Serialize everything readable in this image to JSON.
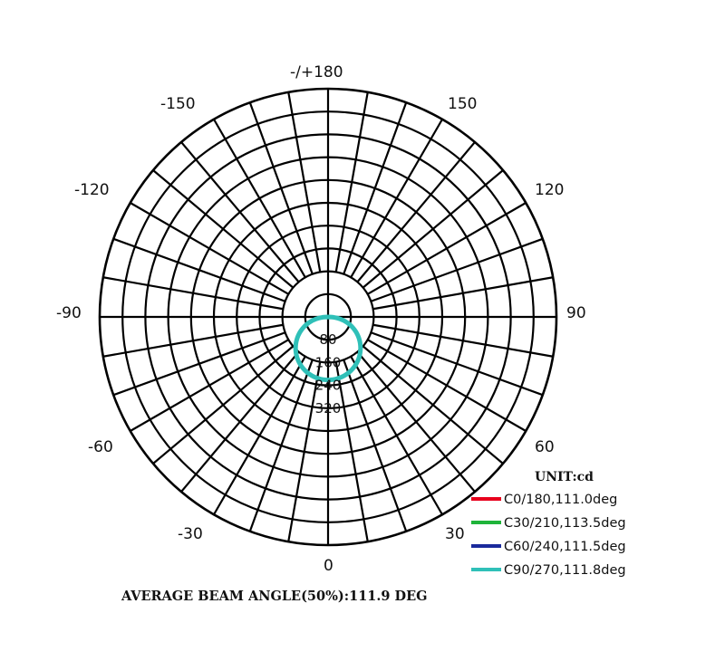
{
  "chart_data": {
    "type": "polar",
    "angle_labels": [
      {
        "angle": 180,
        "text": "-/+180"
      },
      {
        "angle": -150,
        "text": "-150"
      },
      {
        "angle": 150,
        "text": "150"
      },
      {
        "angle": -120,
        "text": "-120"
      },
      {
        "angle": 120,
        "text": "120"
      },
      {
        "angle": -90,
        "text": "-90"
      },
      {
        "angle": 90,
        "text": "90"
      },
      {
        "angle": -60,
        "text": "-60"
      },
      {
        "angle": 60,
        "text": "60"
      },
      {
        "angle": -30,
        "text": "-30"
      },
      {
        "angle": 30,
        "text": "30"
      },
      {
        "angle": 0,
        "text": "0"
      }
    ],
    "radial_rings": [
      80,
      160,
      240,
      320,
      400,
      480,
      560,
      640,
      720,
      800
    ],
    "radial_labels": [
      "80",
      "160",
      "240",
      "320"
    ],
    "rmax": 800,
    "unit_label": "UNIT:cd",
    "series": [
      {
        "name": "C0/180,111.0deg",
        "color": "#e8001c",
        "peak": 220,
        "values": []
      },
      {
        "name": "C30/210,113.5deg",
        "color": "#1fb43a",
        "peak": 222,
        "values": []
      },
      {
        "name": "C60/240,111.5deg",
        "color": "#1a2a9c",
        "peak": 221,
        "values": []
      },
      {
        "name": "C90/270,111.8deg",
        "color": "#2fc0b8",
        "peak": 221,
        "values": []
      }
    ],
    "footer": "AVERAGE BEAM ANGLE(50%):111.9 DEG"
  }
}
